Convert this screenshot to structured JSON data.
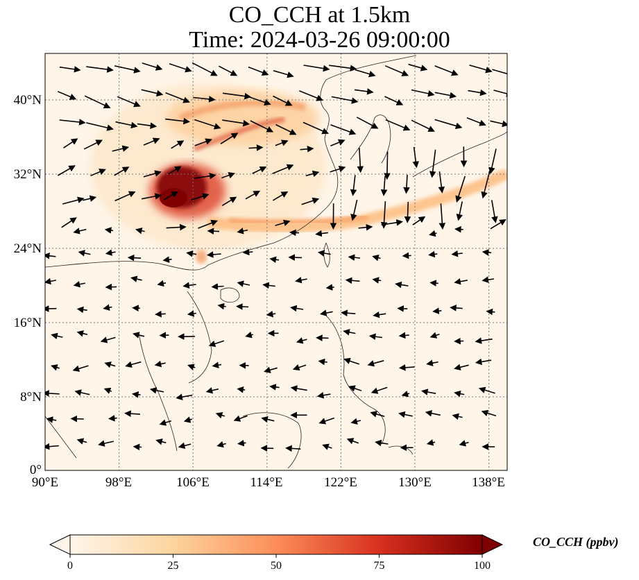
{
  "title": {
    "line1": "CO_CCH at 1.5km",
    "line2": "Time: 2024-03-26 09:00:00"
  },
  "map": {
    "lon_ticks": [
      "90°E",
      "98°E",
      "106°E",
      "114°E",
      "122°E",
      "130°E",
      "138°E"
    ],
    "lat_ticks": [
      "40°N",
      "32°N",
      "24°N",
      "16°N",
      "8°N",
      "0°"
    ],
    "lon_range_deg": [
      90,
      140
    ],
    "lat_range_deg": [
      0,
      45
    ],
    "gridlines": "dotted",
    "background_color": "#fff5e8"
  },
  "colorbar": {
    "label": "CO_CCH (ppbv)",
    "ticks": [
      "0",
      "25",
      "50",
      "75",
      "100"
    ],
    "range": [
      0,
      100
    ],
    "extend": "both",
    "colormap": [
      "#fff5eb",
      "#fdd49e",
      "#fc8d59",
      "#d7301f",
      "#7f0000"
    ]
  }
}
